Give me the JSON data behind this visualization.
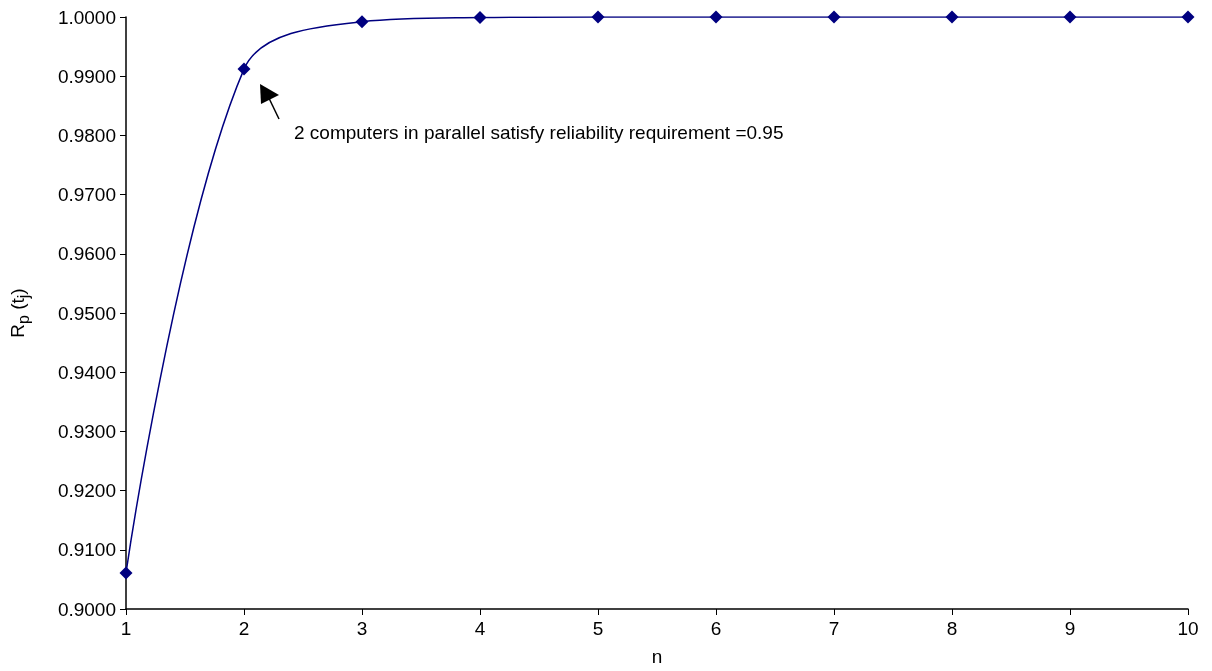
{
  "chart_data": {
    "type": "line",
    "xlabel": "n",
    "ylabel": "R$_{p}$ (t$_{j}$)",
    "x": [
      1,
      2,
      3,
      4,
      5,
      6,
      7,
      8,
      9,
      10
    ],
    "series": [
      {
        "color": "#000080",
        "values": [
          0.9061,
          0.9912,
          0.9992,
          0.9999,
          1.0,
          1.0,
          1.0,
          1.0,
          1.0,
          1.0
        ]
      }
    ],
    "xlim": [
      1,
      10
    ],
    "xticks": [
      1,
      2,
      3,
      4,
      5,
      6,
      7,
      8,
      9,
      10
    ],
    "ylim": [
      0.9,
      1.0
    ],
    "yticks": [
      {
        "value": 0.9,
        "label": "0.9000"
      },
      {
        "value": 0.91,
        "label": "0.9100"
      },
      {
        "value": 0.92,
        "label": "0.9200"
      },
      {
        "value": 0.93,
        "label": "0.9300"
      },
      {
        "value": 0.94,
        "label": "0.9400"
      },
      {
        "value": 0.95,
        "label": "0.9500"
      },
      {
        "value": 0.96,
        "label": "0.9600"
      },
      {
        "value": 0.97,
        "label": "0.9700"
      },
      {
        "value": 0.98,
        "label": "0.9800"
      },
      {
        "value": 0.99,
        "label": "0.9900"
      },
      {
        "value": 1.0,
        "label": "1.0000"
      }
    ],
    "annotations": [
      "2 computers in parallel satisfy reliability requirement =0.95"
    ],
    "marker": "diamond",
    "line_style": "solid",
    "grid": false
  }
}
